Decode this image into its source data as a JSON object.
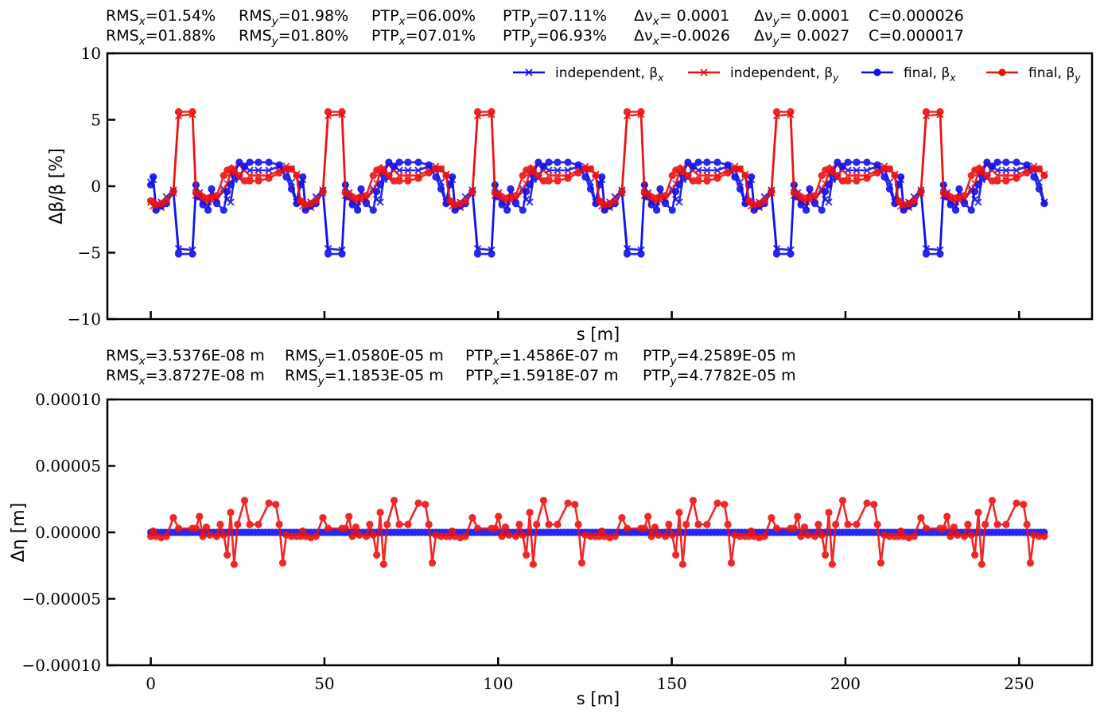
{
  "chart_data": [
    {
      "type": "line",
      "title_lines": [
        [
          "RMS<sub>x</sub>=01.54%",
          "RMS<sub>y</sub>=01.98%",
          "PTP<sub>x</sub>=06.00%",
          "PTP<sub>y</sub>=07.11%",
          "Δν<sub>x</sub>= 0.0001",
          "Δν<sub>y</sub>= 0.0001",
          "C=0.000026"
        ],
        [
          "RMS<sub>x</sub>=01.88%",
          "RMS<sub>y</sub>=01.80%",
          "PTP<sub>x</sub>=07.01%",
          "PTP<sub>y</sub>=06.93%",
          "Δν<sub>x</sub>=-0.0026",
          "Δν<sub>y</sub>= 0.0027",
          "C=0.000017"
        ]
      ],
      "xlabel": "s [m]",
      "ylabel": "Δβ/β [%]",
      "xlim": [
        -12.5,
        271
      ],
      "ylim": [
        -10,
        10
      ],
      "xticks": [
        0,
        50,
        100,
        150,
        200,
        250
      ],
      "show_xtick_labels": false,
      "yticks": [
        -10,
        -5,
        0,
        5,
        10
      ],
      "ytick_labels": [
        "−10",
        "−5",
        "0",
        "5",
        "10"
      ],
      "legend": {
        "placement": "top-right",
        "entries": [
          {
            "label": "independent, β<sub>x</sub>",
            "color": "#1010ee",
            "marker": "x"
          },
          {
            "label": "independent, β<sub>y</sub>",
            "color": "#ee1010",
            "marker": "x"
          },
          {
            "label": "final, β<sub>x</sub>",
            "color": "#1010ee",
            "marker": "o"
          },
          {
            "label": "final, β<sub>y</sub>",
            "color": "#ee1010",
            "marker": "o"
          }
        ]
      },
      "period": 43.05,
      "periods": 6,
      "series": [
        {
          "name": "independent, β_x",
          "color": "#1010ee",
          "marker": "x",
          "x": [
            0,
            0.7,
            1.5,
            3,
            4.5,
            6.5,
            8,
            12,
            13,
            14,
            15,
            16.5,
            17.5,
            19,
            21,
            22,
            23,
            24,
            25.5,
            27,
            28.5,
            31,
            34,
            37,
            39,
            40.5,
            42
          ],
          "y": [
            0.3,
            0.5,
            -1.5,
            -1.2,
            -0.8,
            -0.3,
            -4.7,
            -4.8,
            -0.1,
            -0.5,
            -1.2,
            -1.5,
            -0.5,
            -1,
            -0.2,
            -1,
            -1.2,
            0.5,
            0.6,
            1.5,
            1.2,
            1.2,
            1.2,
            1.5,
            1.3,
            0.3,
            -1.2
          ]
        },
        {
          "name": "independent, β_y",
          "color": "#ee1010",
          "marker": "x",
          "x": [
            0,
            0.7,
            1.5,
            3,
            4.5,
            6.5,
            8,
            12,
            13,
            14,
            15,
            16.5,
            17.5,
            19,
            21,
            22,
            23,
            24,
            25.5,
            27,
            28.5,
            31,
            34,
            37,
            39,
            40.5,
            42
          ],
          "y": [
            -1.2,
            -1.5,
            -1.7,
            -1.6,
            -1.2,
            -0.5,
            5.3,
            5.4,
            -0.7,
            -0.8,
            -1,
            -1.2,
            -1.1,
            -0.9,
            -0.4,
            0.2,
            1,
            1.4,
            1.6,
            1.2,
            0.8,
            0.8,
            0.8,
            1.2,
            1.5,
            1.3,
            0.9
          ]
        },
        {
          "name": "final, β_x",
          "color": "#1010ee",
          "marker": "o",
          "x": [
            0,
            0.7,
            1.5,
            3,
            4.5,
            6.5,
            8,
            12,
            13,
            14,
            15,
            16.5,
            17.5,
            19,
            21,
            22,
            23,
            24,
            25.5,
            27,
            28.5,
            31,
            34,
            37,
            39,
            40.5,
            42
          ],
          "y": [
            0.1,
            0.7,
            -1.8,
            -1.5,
            -1.3,
            -0.4,
            -5.1,
            -5.1,
            0.1,
            -0.8,
            -1.4,
            -1.8,
            -0.2,
            -1.3,
            -1.8,
            -0.4,
            0.1,
            0.9,
            1.8,
            1.5,
            1.8,
            1.8,
            1.8,
            1.6,
            0.7,
            -0.2,
            -1.3
          ]
        },
        {
          "name": "final, β_y",
          "color": "#ee1010",
          "marker": "o",
          "x": [
            0,
            0.7,
            1.5,
            3,
            4.5,
            6.5,
            8,
            12,
            13,
            14,
            15,
            16.5,
            17.5,
            19,
            21,
            22,
            23,
            24,
            25.5,
            27,
            28.5,
            31,
            34,
            37,
            39,
            40.5,
            42
          ],
          "y": [
            -1.1,
            -1.2,
            -1.4,
            -1.3,
            -1.1,
            -0.4,
            5.6,
            5.6,
            -0.5,
            -0.6,
            -0.8,
            -0.9,
            -0.8,
            -0.7,
            0.8,
            1.2,
            1.3,
            1.1,
            0.8,
            0.4,
            0.4,
            0.4,
            0.6,
            1,
            1.3,
            1.3,
            0.8
          ]
        }
      ]
    },
    {
      "type": "line",
      "title_lines": [
        [
          "RMS<sub>x</sub>=3.5376E-08 m",
          "RMS<sub>y</sub>=1.0580E-05 m",
          "PTP<sub>x</sub>=1.4586E-07 m",
          "PTP<sub>y</sub>=4.2589E-05 m"
        ],
        [
          "RMS<sub>x</sub>=3.8727E-08 m",
          "RMS<sub>y</sub>=1.1853E-05 m",
          "PTP<sub>x</sub>=1.5918E-07 m",
          "PTP<sub>y</sub>=4.7782E-05 m"
        ]
      ],
      "xlabel": "s [m]",
      "ylabel": "Δη [m]",
      "xlim": [
        -12.5,
        271
      ],
      "ylim": [
        -0.0001,
        0.0001
      ],
      "xticks": [
        0,
        50,
        100,
        150,
        200,
        250
      ],
      "xtick_labels": [
        "0",
        "50",
        "100",
        "150",
        "200",
        "250"
      ],
      "show_xtick_labels": true,
      "yticks": [
        -0.0001,
        -5e-05,
        0,
        5e-05,
        0.0001
      ],
      "ytick_labels": [
        "−0.00010",
        "−0.00005",
        "0.00000",
        "0.00005",
        "0.00010"
      ],
      "period": 43.05,
      "periods": 6,
      "series": [
        {
          "name": "β_x",
          "color": "#1010ee",
          "marker": "o",
          "x": [
            0,
            1,
            2,
            3,
            4,
            5,
            6,
            7,
            8,
            9,
            10,
            11,
            12,
            13,
            14,
            15,
            16,
            17,
            18,
            19,
            20,
            21,
            22,
            23,
            24,
            25,
            26,
            27,
            28,
            29,
            30,
            31,
            32,
            33,
            34,
            35,
            36,
            37,
            38,
            39,
            40,
            41,
            42
          ],
          "y": [
            0,
            0,
            0,
            0,
            0,
            0,
            0,
            0,
            0,
            0,
            0,
            0,
            0,
            0,
            0,
            0,
            0,
            0,
            0,
            0,
            0,
            0,
            0,
            0,
            0,
            0,
            0,
            0,
            0,
            0,
            0,
            0,
            0,
            0,
            0,
            0,
            0,
            0,
            0,
            0,
            0,
            0,
            0
          ]
        },
        {
          "name": "β_y",
          "color": "#ee1010",
          "marker": "o",
          "x": [
            0,
            0.7,
            1.5,
            3,
            4.5,
            6.5,
            8,
            12,
            13,
            14,
            15,
            16,
            17,
            19,
            20,
            21,
            22,
            23,
            24,
            25,
            27,
            28.5,
            31,
            34,
            36,
            37,
            38,
            39,
            40.5,
            42
          ],
          "y": [
            -3e-06,
            1e-06,
            -3e-06,
            -4e-06,
            -3e-06,
            1.1e-05,
            3e-06,
            3e-06,
            3e-06,
            1.2e-05,
            -3e-06,
            4e-06,
            -2e-06,
            -3e-06,
            6e-06,
            -2e-06,
            -1.7e-05,
            1.5e-05,
            -2.4e-05,
            6e-06,
            2.4e-05,
            6e-06,
            6e-06,
            2.2e-05,
            2.1e-05,
            6e-06,
            -2.3e-05,
            -2e-06,
            -3e-06,
            -3e-06
          ]
        }
      ]
    }
  ]
}
